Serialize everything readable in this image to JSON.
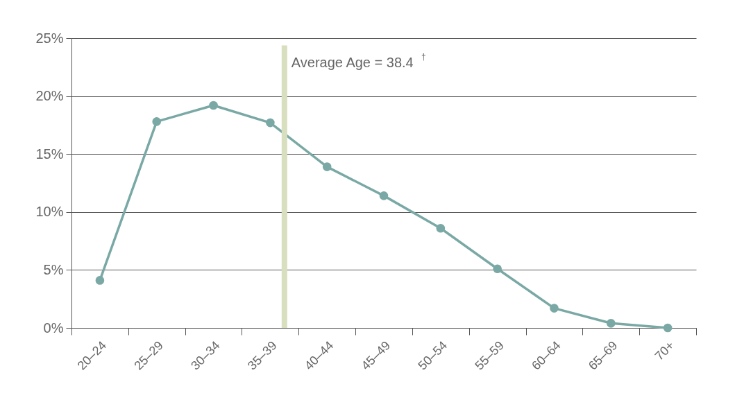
{
  "chart_data": {
    "type": "line",
    "categories": [
      "20–24",
      "25–29",
      "30–34",
      "35–39",
      "40–44",
      "45–49",
      "50–54",
      "55–59",
      "60–64",
      "65–69",
      "70+"
    ],
    "series": [
      {
        "color": "#7aa9a5",
        "values": [
          4.1,
          17.8,
          19.2,
          17.7,
          13.9,
          11.4,
          8.6,
          5.1,
          1.7,
          0.4,
          0.0
        ]
      }
    ],
    "ylim": [
      0,
      25
    ],
    "yticks": [
      {
        "value": 0,
        "label": "0%"
      },
      {
        "value": 5,
        "label": "5%"
      },
      {
        "value": 10,
        "label": "10%"
      },
      {
        "value": 15,
        "label": "15%"
      },
      {
        "value": 20,
        "label": "20%"
      },
      {
        "value": 25,
        "label": "25%"
      }
    ],
    "grid": "y",
    "marker": "circle",
    "line_style": "solid",
    "ref_lines": [
      {
        "axis": "x",
        "value": "35–39",
        "label": "Average Age = 38.4$^{†}$",
        "color": "#d8dfbf"
      }
    ]
  }
}
